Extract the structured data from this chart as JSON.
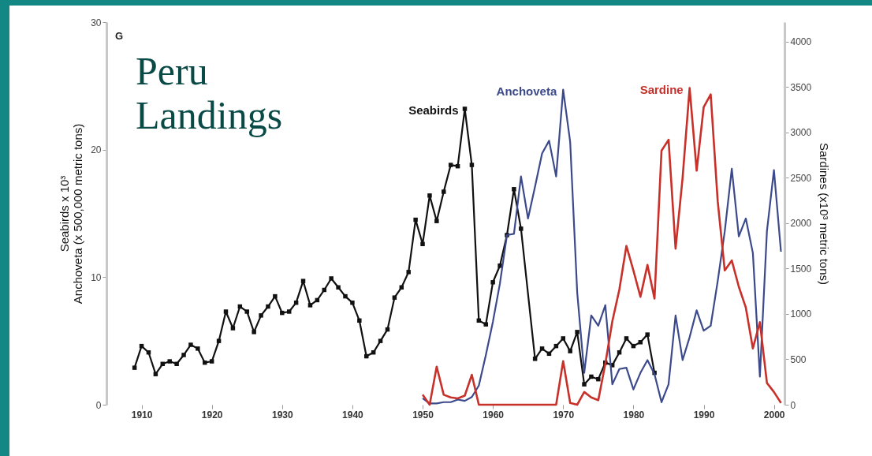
{
  "chart_data": {
    "type": "line",
    "title": "Peru Landings",
    "ylabel": "Seabirds x 10³\nAnchoveta (x 500,000 metric tons)",
    "y2label": "Sardines (x10³ metric tons)",
    "annotations": [
      "G"
    ],
    "xlim": [
      1905,
      2001.5
    ],
    "xticks": [
      1910,
      1920,
      1930,
      1940,
      1950,
      1960,
      1970,
      1980,
      1990,
      2000
    ],
    "ylim": [
      0,
      30
    ],
    "yticks": [
      0,
      10,
      20,
      30
    ],
    "y2lim": [
      0,
      4217
    ],
    "y2ticks": [
      0,
      500,
      1000,
      1500,
      2000,
      2500,
      3000,
      3500,
      4000
    ],
    "grid": false,
    "legend": false,
    "series": [
      {
        "name": "Seabirds",
        "color": "#111111",
        "marker": "square",
        "x": [
          1909,
          1910,
          1911,
          1912,
          1913,
          1914,
          1915,
          1916,
          1917,
          1918,
          1919,
          1920,
          1921,
          1922,
          1923,
          1924,
          1925,
          1926,
          1927,
          1928,
          1929,
          1930,
          1931,
          1932,
          1933,
          1934,
          1935,
          1936,
          1937,
          1938,
          1939,
          1940,
          1941,
          1942,
          1943,
          1944,
          1945,
          1946,
          1947,
          1948,
          1949,
          1950,
          1951,
          1952,
          1953,
          1954,
          1955,
          1956,
          1957,
          1958,
          1959,
          1960,
          1961,
          1962,
          1963,
          1964,
          1966,
          1967,
          1968,
          1969,
          1970,
          1971,
          1972,
          1973,
          1974,
          1975,
          1976,
          1977,
          1978,
          1979,
          1980,
          1981,
          1982,
          1983
        ],
        "values": [
          2.9,
          4.6,
          4.1,
          2.4,
          3.2,
          3.4,
          3.2,
          3.9,
          4.7,
          4.4,
          3.3,
          3.4,
          5.0,
          7.3,
          6.0,
          7.7,
          7.3,
          5.7,
          7.0,
          7.7,
          8.5,
          7.2,
          7.3,
          8.0,
          9.7,
          7.8,
          8.2,
          9.0,
          9.9,
          9.2,
          8.5,
          8.0,
          6.6,
          3.8,
          4.1,
          5.0,
          5.9,
          8.4,
          9.2,
          10.4,
          14.5,
          12.6,
          16.4,
          14.4,
          16.7,
          18.8,
          18.7,
          23.2,
          18.8,
          6.6,
          6.3,
          9.6,
          10.9,
          13.3,
          16.9,
          13.8,
          3.6,
          4.4,
          4.0,
          4.6,
          5.2,
          4.2,
          5.7,
          1.6,
          2.2,
          2.0,
          3.3,
          3.1,
          4.1,
          5.2,
          4.6,
          4.9,
          5.5,
          2.5
        ]
      },
      {
        "name": "Anchoveta",
        "color": "#3c4a8c",
        "x": [
          1950,
          1951,
          1952,
          1953,
          1954,
          1955,
          1956,
          1957,
          1958,
          1959,
          1960,
          1961,
          1962,
          1963,
          1964,
          1965,
          1966,
          1967,
          1968,
          1969,
          1970,
          1971,
          1972,
          1973,
          1974,
          1975,
          1976,
          1977,
          1978,
          1979,
          1980,
          1981,
          1982,
          1983,
          1984,
          1985,
          1986,
          1987,
          1988,
          1989,
          1990,
          1991,
          1992,
          1993,
          1994,
          1995,
          1996,
          1997,
          1998,
          1999,
          2000,
          2001
        ],
        "values": [
          0.5,
          0.1,
          0.1,
          0.2,
          0.2,
          0.4,
          0.3,
          0.6,
          1.5,
          3.9,
          6.5,
          9.5,
          13.3,
          13.4,
          17.9,
          14.6,
          17.1,
          19.7,
          20.7,
          17.9,
          24.7,
          20.6,
          8.8,
          2.5,
          7.0,
          6.2,
          7.8,
          1.6,
          2.8,
          2.9,
          1.2,
          2.5,
          3.5,
          2.4,
          0.2,
          1.6,
          7.0,
          3.5,
          5.3,
          7.4,
          5.8,
          6.2,
          9.7,
          13.6,
          18.5,
          13.2,
          14.6,
          11.9,
          2.2,
          13.6,
          18.4,
          12.0
        ]
      },
      {
        "name": "Sardine",
        "color": "#c8302a",
        "axis": "y2",
        "x": [
          1950,
          1951,
          1952,
          1953,
          1954,
          1955,
          1956,
          1957,
          1958,
          1959,
          1960,
          1961,
          1962,
          1963,
          1964,
          1965,
          1966,
          1967,
          1968,
          1969,
          1970,
          1971,
          1972,
          1973,
          1974,
          1975,
          1976,
          1977,
          1978,
          1979,
          1980,
          1981,
          1982,
          1983,
          1984,
          1985,
          1986,
          1987,
          1988,
          1989,
          1990,
          1991,
          1992,
          1993,
          1994,
          1995,
          1996,
          1997,
          1998,
          1999,
          2000,
          2001
        ],
        "values": [
          110,
          0,
          420,
          110,
          80,
          70,
          100,
          330,
          0,
          0,
          0,
          0,
          0,
          0,
          0,
          0,
          0,
          0,
          0,
          0,
          480,
          20,
          0,
          140,
          80,
          50,
          450,
          920,
          1270,
          1750,
          1480,
          1190,
          1540,
          1170,
          2800,
          2920,
          1720,
          2500,
          3490,
          2580,
          3280,
          3420,
          2240,
          1480,
          1590,
          1300,
          1070,
          620,
          910,
          240,
          140,
          20
        ]
      }
    ]
  }
}
